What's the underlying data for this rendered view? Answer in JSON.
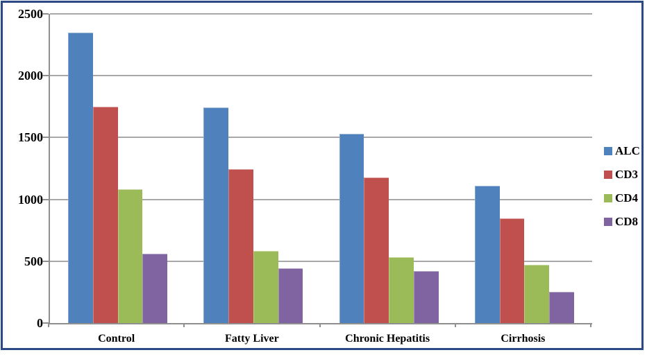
{
  "frame": {
    "border_color": "#2a4a85",
    "background": "#ffffff"
  },
  "axis": {
    "line_color": "#8f8f8f",
    "grid_color": "#a8a8a8",
    "text_color": "#000000"
  },
  "chart_data": {
    "type": "bar",
    "title": "",
    "xlabel": "",
    "ylabel": "",
    "categories": [
      "Control",
      "Fatty Liver",
      "Chronic Hepatitis",
      "Cirrhosis"
    ],
    "series": [
      {
        "name": "ALC",
        "color": "#4F81BD",
        "values": [
          2350,
          1745,
          1530,
          1110
        ]
      },
      {
        "name": "CD3",
        "color": "#C0504D",
        "values": [
          1750,
          1245,
          1180,
          845
        ]
      },
      {
        "name": "CD4",
        "color": "#9BBB59",
        "values": [
          1080,
          585,
          530,
          470
        ]
      },
      {
        "name": "CD8",
        "color": "#8064A2",
        "values": [
          560,
          445,
          420,
          250
        ]
      }
    ],
    "ylim": [
      0,
      2500
    ],
    "yticks": [
      0,
      500,
      1000,
      1500,
      2000,
      2500
    ],
    "grid": true,
    "legend_position": "right"
  }
}
